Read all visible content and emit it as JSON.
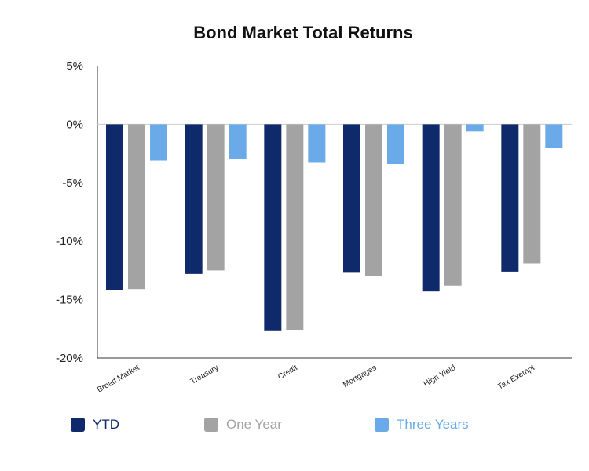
{
  "chart_data": {
    "type": "bar",
    "title": "Bond Market Total Returns",
    "xlabel": "",
    "ylabel": "",
    "categories": [
      "Broad Market",
      "Treasury",
      "Credit",
      "Mortgages",
      "High Yield",
      "Tax Exempt"
    ],
    "series": [
      {
        "name": "YTD",
        "color": "#0f2a6b",
        "values": [
          -14.2,
          -12.8,
          -17.7,
          -12.7,
          -14.3,
          -12.6
        ]
      },
      {
        "name": "One Year",
        "color": "#a3a3a3",
        "values": [
          -14.1,
          -12.5,
          -17.6,
          -13.0,
          -13.8,
          -11.9
        ]
      },
      {
        "name": "Three Years",
        "color": "#6aaae8",
        "values": [
          -3.1,
          -3.0,
          -3.3,
          -3.4,
          -0.6,
          -2.0
        ]
      }
    ],
    "ylim": [
      -20,
      5
    ],
    "yticks": [
      5,
      0,
      -5,
      -10,
      -15,
      -20
    ],
    "ytick_labels": [
      "5%",
      "0%",
      "-5%",
      "-10%",
      "-15%",
      "-20%"
    ],
    "grid": false,
    "legend_position": "bottom"
  }
}
